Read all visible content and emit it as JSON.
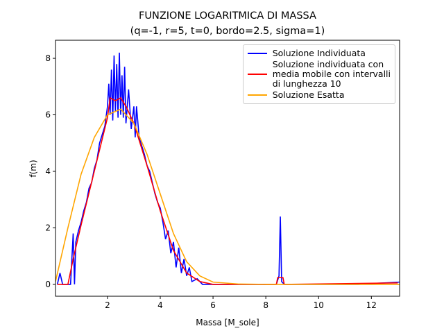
{
  "chart_data": {
    "type": "line",
    "title": "FUNZIONE LOGARITMICA DI MASSA",
    "subtitle": "(q=-1, r=5, t=0, bordo=2.5, sigma=1)",
    "xlabel": "Massa [M_sole]",
    "ylabel": "f(m)",
    "xlim": [
      0.03,
      13.07
    ],
    "ylim": [
      -0.42,
      8.64
    ],
    "xticks": [
      2,
      4,
      6,
      8,
      10,
      12
    ],
    "yticks": [
      0,
      2,
      4,
      6,
      8
    ],
    "legend": "upper right",
    "series": [
      {
        "name": "Soluzione Individuata",
        "color": "#0000ff",
        "x": [
          0.1,
          0.2,
          0.3,
          0.5,
          0.6,
          0.7,
          0.75,
          0.8,
          0.9,
          1.0,
          1.1,
          1.2,
          1.3,
          1.4,
          1.5,
          1.6,
          1.7,
          1.8,
          1.9,
          2.0,
          2.05,
          2.1,
          2.15,
          2.2,
          2.25,
          2.3,
          2.35,
          2.4,
          2.45,
          2.5,
          2.55,
          2.6,
          2.65,
          2.7,
          2.8,
          2.9,
          3.0,
          3.05,
          3.1,
          3.2,
          3.3,
          3.4,
          3.5,
          3.6,
          3.7,
          3.8,
          3.9,
          4.0,
          4.1,
          4.2,
          4.3,
          4.4,
          4.5,
          4.6,
          4.7,
          4.8,
          4.9,
          5.0,
          5.1,
          5.2,
          5.4,
          5.6,
          6.0,
          8.4,
          8.5,
          8.55,
          8.6,
          8.7,
          11.5,
          12,
          12.5,
          13.07
        ],
        "values": [
          0,
          0.4,
          0,
          0,
          0,
          1.8,
          0,
          1.5,
          1.9,
          2.2,
          2.6,
          2.9,
          3.4,
          3.6,
          4.1,
          4.4,
          5.0,
          5.3,
          5.6,
          6.3,
          7.1,
          6.0,
          7.6,
          5.8,
          8.1,
          6.1,
          7.8,
          5.9,
          8.2,
          6.0,
          7.4,
          5.9,
          7.7,
          5.7,
          6.9,
          5.5,
          6.3,
          5.2,
          6.3,
          5.2,
          4.9,
          4.6,
          4.2,
          4.0,
          3.6,
          3.2,
          2.9,
          2.7,
          2.2,
          1.6,
          1.9,
          1.1,
          1.5,
          0.6,
          1.3,
          0.4,
          0.9,
          0.3,
          0.6,
          0.1,
          0.2,
          0,
          0,
          0,
          0.3,
          2.4,
          0.1,
          0,
          0,
          0.03,
          0.05,
          0.08
        ]
      },
      {
        "name": "Soluzione individuata con\nmedia mobile con intervalli\ndi lunghezza 10",
        "color": "#ff0000",
        "x": [
          0.1,
          0.5,
          0.7,
          1.0,
          1.5,
          2.0,
          2.1,
          2.3,
          2.5,
          2.7,
          3.0,
          3.5,
          4.0,
          4.5,
          5.0,
          5.5,
          6.0,
          8.4,
          8.45,
          8.65,
          8.7,
          13.0
        ],
        "values": [
          0,
          0,
          0.9,
          2.1,
          4.0,
          5.9,
          6.6,
          6.5,
          6.6,
          6.3,
          5.7,
          4.2,
          2.6,
          1.2,
          0.4,
          0.1,
          0,
          0,
          0.24,
          0.24,
          0,
          0.05
        ]
      },
      {
        "name": "Soluzione Esatta",
        "color": "#ffa500",
        "x": [
          0.03,
          0.5,
          1.0,
          1.5,
          2.0,
          2.5,
          3.0,
          3.5,
          4.0,
          4.5,
          5.0,
          5.5,
          6.0,
          7.0,
          8.0,
          13.07
        ],
        "values": [
          0.1,
          2.0,
          3.9,
          5.2,
          6.0,
          6.2,
          5.7,
          4.6,
          3.2,
          1.8,
          0.8,
          0.3,
          0.08,
          0.01,
          0,
          0
        ]
      }
    ]
  }
}
